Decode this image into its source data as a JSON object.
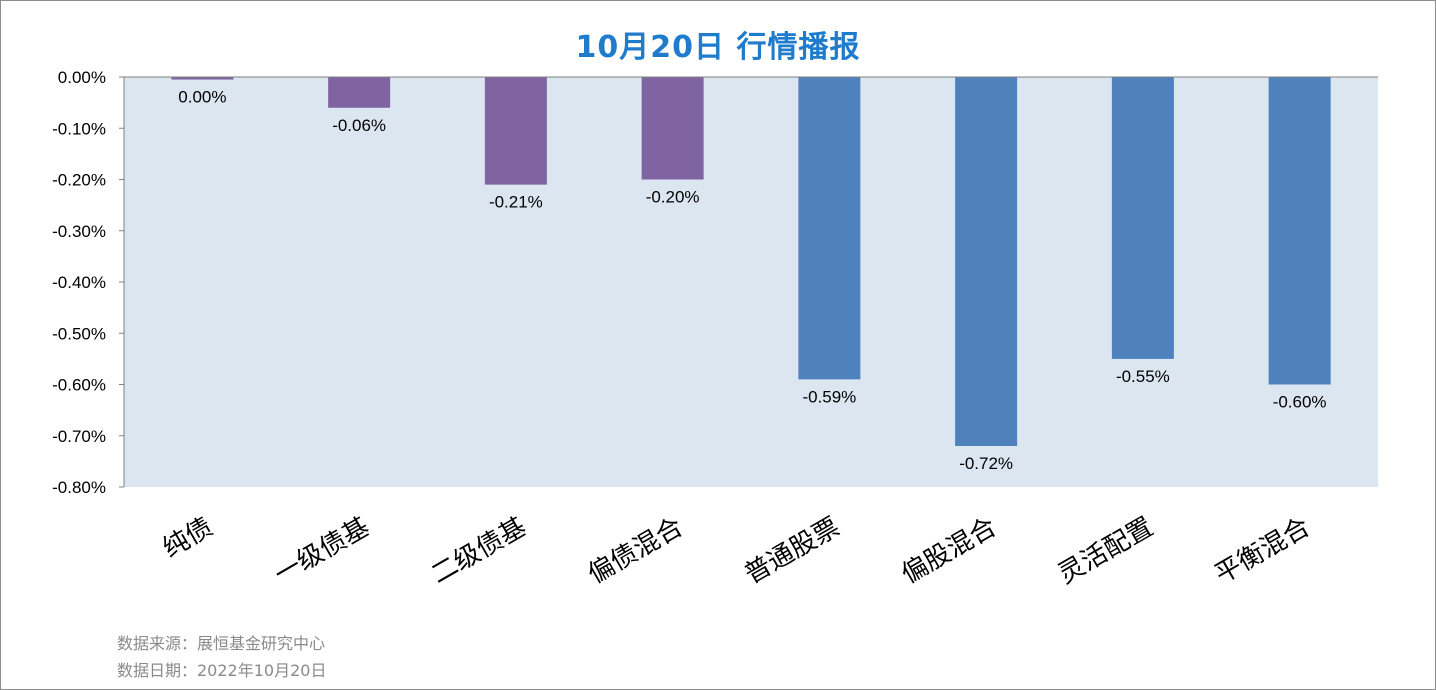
{
  "title": "10月20日  行情播报",
  "chart_data": {
    "type": "bar",
    "title": "10月20日  行情播报",
    "categories": [
      "纯债",
      "一级债基",
      "二级债基",
      "偏债混合",
      "普通股票",
      "偏股混合",
      "灵活配置",
      "平衡混合"
    ],
    "values": [
      -0.005,
      -0.06,
      -0.21,
      -0.2,
      -0.59,
      -0.72,
      -0.55,
      -0.6
    ],
    "data_labels": [
      "0.00%",
      "-0.06%",
      "-0.21%",
      "-0.20%",
      "-0.59%",
      "-0.72%",
      "-0.55%",
      "-0.60%"
    ],
    "bar_colors": [
      "#8064a2",
      "#8064a2",
      "#8064a2",
      "#8064a2",
      "#4f81bd",
      "#4f81bd",
      "#4f81bd",
      "#4f81bd"
    ],
    "plot_background": "#dce6f1",
    "ylim": [
      -0.8,
      0.0
    ],
    "yticks": [
      0.0,
      -0.1,
      -0.2,
      -0.3,
      -0.4,
      -0.5,
      -0.6,
      -0.7,
      -0.8
    ],
    "ytick_labels": [
      "0.00%",
      "-0.10%",
      "-0.20%",
      "-0.30%",
      "-0.40%",
      "-0.50%",
      "-0.60%",
      "-0.70%",
      "-0.80%"
    ],
    "xlabel": "",
    "ylabel": "",
    "grid": false,
    "legend": "none"
  },
  "footer": {
    "source": "数据来源：展恒基金研究中心",
    "date": "数据日期：2022年10月20日"
  }
}
